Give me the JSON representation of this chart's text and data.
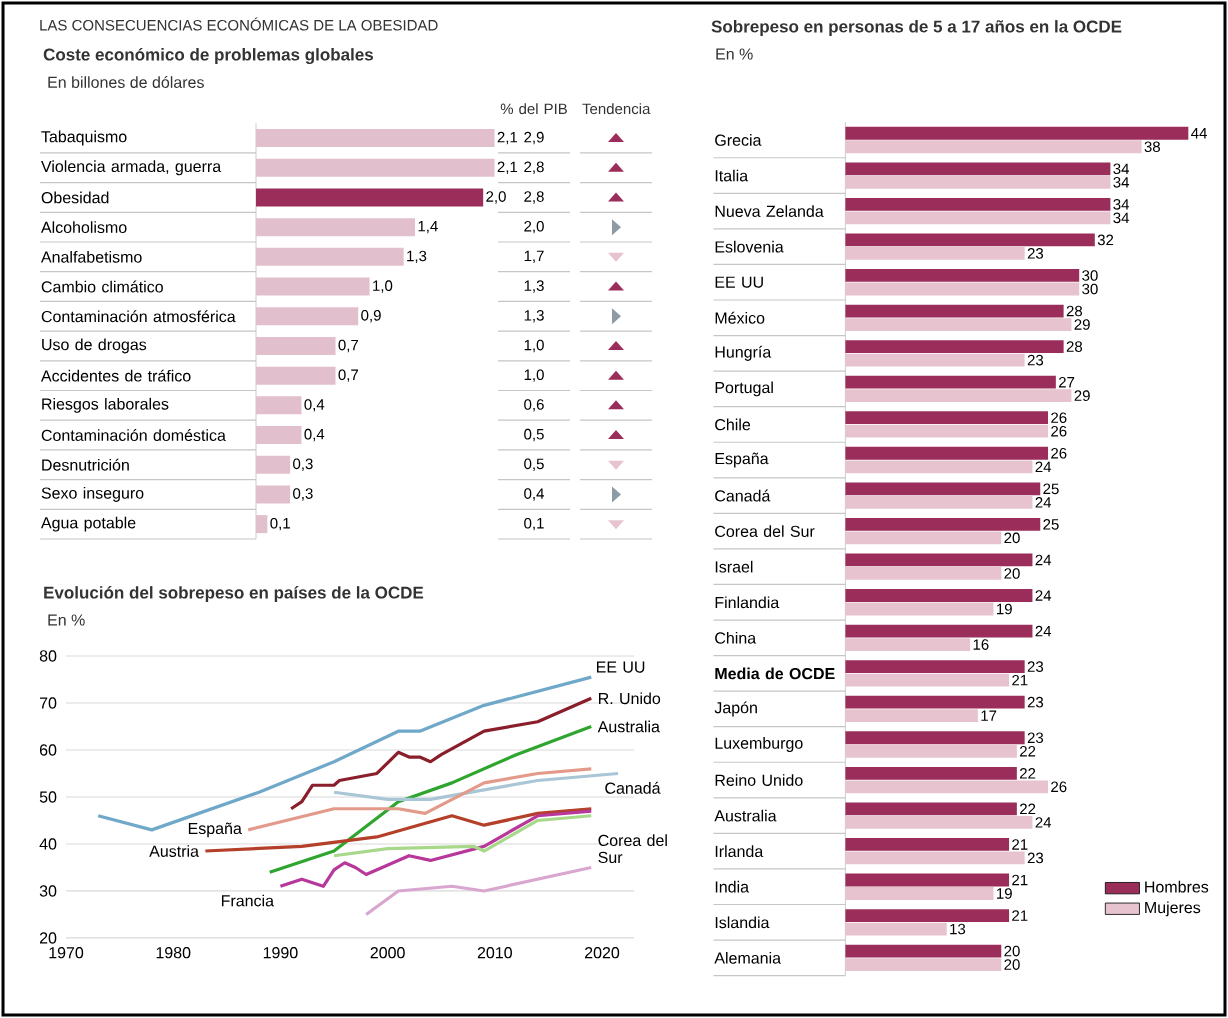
{
  "chart_data": [
    {
      "type": "bar",
      "orientation": "horizontal",
      "title": "Coste económico de problemas globales",
      "subtitle": "En billones de dólares",
      "annotations": [
        "LAS CONSECUENCIAS ECONÓMICAS DE LA OBESIDAD"
      ],
      "categories": [
        "Tabaquismo",
        "Violencia armada, guerra",
        "Obesidad",
        "Alcoholismo",
        "Analfabetismo",
        "Cambio climático",
        "Contaminación atmosférica",
        "Uso de drogas",
        "Accidentes de tráfico",
        "Riesgos laborales",
        "Contaminación doméstica",
        "Desnutrición",
        "Sexo inseguro",
        "Agua potable"
      ],
      "values": [
        2.1,
        2.1,
        2.0,
        1.4,
        1.3,
        1.0,
        0.9,
        0.7,
        0.7,
        0.4,
        0.4,
        0.3,
        0.3,
        0.1
      ],
      "value_labels": [
        "2,1",
        "2,1",
        "2,0",
        "1,4",
        "1,3",
        "1,0",
        "0,9",
        "0,7",
        "0,7",
        "0,4",
        "0,4",
        "0,3",
        "0,3",
        "0,1"
      ],
      "colors": [
        "#e2bfcc",
        "#e2bfcc",
        "#9b2d5a",
        "#e2bfcc",
        "#e2bfcc",
        "#e2bfcc",
        "#e2bfcc",
        "#e2bfcc",
        "#e2bfcc",
        "#e2bfcc",
        "#e2bfcc",
        "#e2bfcc",
        "#e2bfcc",
        "#e2bfcc"
      ]
    },
    {
      "type": "other",
      "title": "% del PIB",
      "values": [
        2.9,
        2.8,
        2.8,
        2.0,
        1.7,
        1.3,
        1.3,
        1.0,
        1.0,
        0.6,
        0.5,
        0.5,
        0.4,
        0.1
      ],
      "value_labels": [
        "2,9",
        "2,8",
        "2,8",
        "2,0",
        "1,7",
        "1,3",
        "1,3",
        "1,0",
        "1,0",
        "0,6",
        "0,5",
        "0,5",
        "0,4",
        "0,1"
      ]
    },
    {
      "type": "other",
      "title": "Tendencia",
      "colors": [
        "#9b2d5a",
        "#9b2d5a",
        "#9b2d5a",
        "#8c9ba6",
        "#e6c3cf",
        "#9b2d5a",
        "#8c9ba6",
        "#9b2d5a",
        "#9b2d5a",
        "#9b2d5a",
        "#9b2d5a",
        "#e6c3cf",
        "#8c9ba6",
        "#e6c3cf"
      ]
    },
    {
      "type": "line",
      "title": "Evolución del sobrepeso en países de la OCDE",
      "subtitle": "En %",
      "xlim": [
        1970,
        2023
      ],
      "xticks": [
        1970,
        1980,
        1990,
        2000,
        2010,
        2020
      ],
      "ylim": [
        20,
        80
      ],
      "yticks": [
        20,
        30,
        40,
        50,
        60,
        70,
        80
      ],
      "grid": "y",
      "series": [
        {
          "name": "EE UU",
          "color": "#6fa8c8",
          "x": [
            1973,
            1978,
            1988,
            1995,
            2001,
            2003,
            2009,
            2019
          ],
          "values": [
            46,
            43,
            51,
            57.5,
            64,
            64,
            69.5,
            75.5
          ]
        },
        {
          "name": "R. Unido",
          "color": "#8b1e2b",
          "x": [
            1991,
            1992,
            1993,
            1995,
            1995.5,
            1999,
            2001,
            2002,
            2003,
            2004,
            2005,
            2009,
            2014,
            2019
          ],
          "values": [
            47.5,
            49,
            52.5,
            52.5,
            53.5,
            55,
            59.5,
            58.5,
            58.5,
            57.5,
            59,
            64,
            66,
            71
          ]
        },
        {
          "name": "Australia",
          "color": "#2ea52e",
          "x": [
            1989,
            1995,
            2001,
            2006,
            2012,
            2019
          ],
          "values": [
            34,
            38.5,
            49,
            53,
            59,
            65
          ]
        },
        {
          "name": "Canadá",
          "color": "#a9c6d6",
          "x": [
            1995,
            2000,
            2004,
            2009,
            2014,
            2021.5
          ],
          "values": [
            51,
            49.5,
            49.5,
            51.5,
            53.5,
            55
          ]
        },
        {
          "name": "España",
          "color": "#e39a8a",
          "x": [
            1987,
            1995,
            2001,
            2003.5,
            2009,
            2014,
            2019
          ],
          "values": [
            43,
            47.5,
            47.5,
            46.5,
            53,
            55,
            56
          ]
        },
        {
          "name": "Austria",
          "color": "#b5402a",
          "x": [
            1983,
            1992,
            1999,
            2006,
            2009,
            2014,
            2019
          ],
          "values": [
            38.5,
            39.5,
            41.5,
            46,
            44,
            46.5,
            47.5
          ]
        },
        {
          "name": "Francia",
          "color": "#b8379a",
          "x": [
            1990,
            1992,
            1994,
            1995,
            1996,
            1997,
            1998,
            2002,
            2004,
            2009,
            2014,
            2019
          ],
          "values": [
            31,
            32.5,
            31,
            34.5,
            36,
            35,
            33.5,
            37.5,
            36.5,
            39.5,
            46,
            47
          ]
        },
        {
          "color": "#a8d88a",
          "x": [
            1995,
            2000,
            2008,
            2009,
            2014,
            2019
          ],
          "values": [
            37.5,
            39,
            39.5,
            38.5,
            45,
            46
          ]
        },
        {
          "name": "Corea del Sur",
          "color": "#d9a6d0",
          "x": [
            1998,
            2001,
            2006,
            2009,
            2019
          ],
          "values": [
            25,
            30,
            31,
            30,
            35
          ]
        }
      ]
    },
    {
      "type": "bar",
      "orientation": "horizontal",
      "title": "Sobrepeso en personas de 5 a 17 años en la OCDE",
      "subtitle": "En %",
      "data_labels": true,
      "legend": "bottom right",
      "categories": [
        "Grecia",
        "Italia",
        "Nueva Zelanda",
        "Eslovenia",
        "EE UU",
        "México",
        "Hungría",
        "Portugal",
        "Chile",
        "España",
        "Canadá",
        "Corea del Sur",
        "Israel",
        "Finlandia",
        "China",
        "**Media de OCDE**",
        "Japón",
        "Luxemburgo",
        "Reino Unido",
        "Australia",
        "Irlanda",
        "India",
        "Islandia",
        "Alemania"
      ],
      "series": [
        {
          "name": "Hombres",
          "color": "#9b2d5a",
          "values": [
            44,
            34,
            34,
            32,
            30,
            28,
            28,
            27,
            26,
            26,
            25,
            25,
            24,
            24,
            24,
            23,
            23,
            23,
            22,
            22,
            21,
            21,
            21,
            20
          ]
        },
        {
          "name": "Mujeres",
          "color": "#e6c3cf",
          "values": [
            38,
            34,
            34,
            23,
            30,
            29,
            23,
            29,
            26,
            24,
            24,
            20,
            20,
            19,
            16,
            21,
            17,
            22,
            26,
            24,
            23,
            19,
            13,
            20
          ]
        }
      ]
    }
  ]
}
